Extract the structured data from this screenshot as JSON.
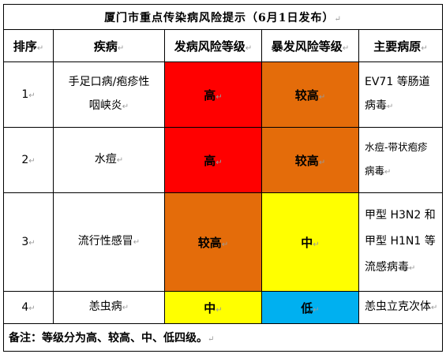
{
  "title": "厦门市重点传染病风险提示（6月1日发布）",
  "headers": {
    "rank": "排序",
    "disease": "疾病",
    "onset_risk": "发病风险等级",
    "outbreak_risk": "暴发风险等级",
    "pathogen": "主要病原"
  },
  "rows": [
    {
      "rank": "1",
      "disease": [
        "手足口病/疱疹性",
        "咽峡炎"
      ],
      "onset_risk": "高",
      "outbreak_risk": "较高",
      "pathogen": [
        "EV71 等肠道",
        "病毒"
      ]
    },
    {
      "rank": "2",
      "disease": [
        "水痘"
      ],
      "onset_risk": "高",
      "outbreak_risk": "较高",
      "pathogen": [
        "水痘-带状疱疹",
        "病毒"
      ]
    },
    {
      "rank": "3",
      "disease": [
        "流行性感冒"
      ],
      "onset_risk": "较高",
      "outbreak_risk": "中",
      "pathogen": [
        "甲型 H3N2 和",
        "甲型 H1N1 等",
        "流感病毒"
      ]
    },
    {
      "rank": "4",
      "disease": [
        "恙虫病"
      ],
      "onset_risk": "中",
      "outbreak_risk": "低",
      "pathogen": [
        "恙虫立克次体"
      ]
    }
  ],
  "level_colors": {
    "高": "#ff0000",
    "较高": "#e46c0a",
    "中": "#ffff00",
    "低": "#00b0f0"
  },
  "footnote": "备注：等级分为高、较高、中、低四级。",
  "para_mark": "↵"
}
